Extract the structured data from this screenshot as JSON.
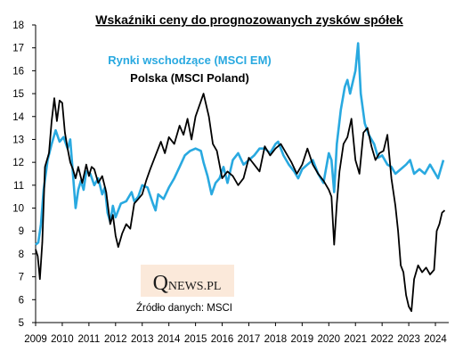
{
  "chart_data": {
    "type": "line",
    "title": "Wskaźniki  ceny do prognozowanych  zysków spółek",
    "xlabel": "",
    "ylabel": "",
    "ylim": [
      5,
      18
    ],
    "xlim": [
      2009.0,
      2024.5
    ],
    "y_ticks": [
      "5",
      "6",
      "7",
      "8",
      "9",
      "10",
      "11",
      "12",
      "13",
      "14",
      "15",
      "16",
      "17",
      "18"
    ],
    "x_ticks": [
      "2009",
      "2010",
      "2011",
      "2012",
      "2013",
      "2014",
      "2015",
      "2016",
      "2017",
      "2018",
      "2019",
      "2020",
      "2021",
      "2022",
      "2023",
      "2024"
    ],
    "grid": false,
    "legend_placement": "top-left",
    "source": "Źródło danych: MSCI",
    "logo": {
      "big": "Q",
      "small": "NEWS.PL"
    },
    "series": [
      {
        "name": "Rynki wschodzące (MSCI EM)",
        "color": "#29a9e0",
        "x": [
          2009.0,
          2009.1,
          2009.2,
          2009.3,
          2009.45,
          2009.6,
          2009.75,
          2009.9,
          2010.05,
          2010.2,
          2010.3,
          2010.4,
          2010.5,
          2010.6,
          2010.7,
          2010.8,
          2010.9,
          2011.05,
          2011.2,
          2011.35,
          2011.5,
          2011.6,
          2011.7,
          2011.8,
          2011.9,
          2012.0,
          2012.2,
          2012.4,
          2012.6,
          2012.7,
          2012.85,
          2013.0,
          2013.2,
          2013.4,
          2013.5,
          2013.6,
          2013.8,
          2014.0,
          2014.2,
          2014.4,
          2014.6,
          2014.8,
          2015.0,
          2015.2,
          2015.3,
          2015.45,
          2015.6,
          2015.75,
          2015.9,
          2016.05,
          2016.2,
          2016.4,
          2016.6,
          2016.8,
          2017.0,
          2017.2,
          2017.4,
          2017.6,
          2017.8,
          2018.0,
          2018.1,
          2018.3,
          2018.5,
          2018.7,
          2018.85,
          2019.0,
          2019.2,
          2019.4,
          2019.6,
          2019.8,
          2020.0,
          2020.1,
          2020.2,
          2020.3,
          2020.45,
          2020.6,
          2020.7,
          2020.8,
          2020.9,
          2021.0,
          2021.1,
          2021.2,
          2021.35,
          2021.5,
          2021.7,
          2021.85,
          2022.0,
          2022.2,
          2022.35,
          2022.5,
          2022.7,
          2022.9,
          2023.05,
          2023.2,
          2023.4,
          2023.6,
          2023.8,
          2023.95,
          2024.1,
          2024.2,
          2024.3
        ],
        "values": [
          8.4,
          8.5,
          9.3,
          10.8,
          12.1,
          12.8,
          13.4,
          12.9,
          13.1,
          12.6,
          13.0,
          11.5,
          10.0,
          10.8,
          11.2,
          10.8,
          11.6,
          11.5,
          11.0,
          11.3,
          10.6,
          10.9,
          9.8,
          9.4,
          10.1,
          9.6,
          10.2,
          10.3,
          10.7,
          10.3,
          10.5,
          11.0,
          10.9,
          10.2,
          9.9,
          10.6,
          10.4,
          10.9,
          11.3,
          11.8,
          12.3,
          12.5,
          12.6,
          12.5,
          12.0,
          11.4,
          10.6,
          11.1,
          11.3,
          11.8,
          11.1,
          12.1,
          12.4,
          11.9,
          12.1,
          12.3,
          12.6,
          12.6,
          12.4,
          12.8,
          12.9,
          12.3,
          11.9,
          11.6,
          11.3,
          11.7,
          11.9,
          12.1,
          11.5,
          11.1,
          12.4,
          12.1,
          10.7,
          12.8,
          14.3,
          15.3,
          15.6,
          15.0,
          15.5,
          16.0,
          17.2,
          15.0,
          13.7,
          13.2,
          12.8,
          12.2,
          12.3,
          11.9,
          11.8,
          11.5,
          11.7,
          11.9,
          12.1,
          11.5,
          11.7,
          11.5,
          11.9,
          11.6,
          11.3,
          11.7,
          12.1
        ]
      },
      {
        "name": "Polska (MSCI Poland)",
        "color": "#000000",
        "x": [
          2009.0,
          2009.08,
          2009.16,
          2009.25,
          2009.35,
          2009.5,
          2009.6,
          2009.7,
          2009.8,
          2009.9,
          2010.0,
          2010.1,
          2010.2,
          2010.3,
          2010.4,
          2010.5,
          2010.6,
          2010.75,
          2010.9,
          2011.0,
          2011.1,
          2011.2,
          2011.35,
          2011.5,
          2011.65,
          2011.8,
          2011.9,
          2012.0,
          2012.1,
          2012.25,
          2012.4,
          2012.55,
          2012.7,
          2012.85,
          2013.0,
          2013.15,
          2013.3,
          2013.5,
          2013.7,
          2013.85,
          2014.0,
          2014.2,
          2014.4,
          2014.55,
          2014.7,
          2014.85,
          2015.0,
          2015.15,
          2015.3,
          2015.5,
          2015.65,
          2015.8,
          2016.0,
          2016.2,
          2016.4,
          2016.6,
          2016.8,
          2017.0,
          2017.2,
          2017.4,
          2017.6,
          2017.8,
          2018.0,
          2018.2,
          2018.4,
          2018.6,
          2018.8,
          2019.0,
          2019.2,
          2019.4,
          2019.6,
          2019.8,
          2020.0,
          2020.1,
          2020.2,
          2020.3,
          2020.4,
          2020.55,
          2020.7,
          2020.85,
          2021.0,
          2021.15,
          2021.3,
          2021.45,
          2021.6,
          2021.75,
          2021.9,
          2022.05,
          2022.2,
          2022.35,
          2022.5,
          2022.6,
          2022.7,
          2022.8,
          2022.9,
          2023.0,
          2023.1,
          2023.2,
          2023.35,
          2023.5,
          2023.65,
          2023.8,
          2023.95,
          2024.05,
          2024.15,
          2024.25,
          2024.35
        ],
        "values": [
          8.2,
          7.9,
          6.9,
          8.5,
          11.8,
          12.4,
          13.8,
          14.8,
          13.8,
          14.7,
          14.6,
          13.3,
          12.6,
          12.0,
          11.7,
          11.3,
          11.8,
          11.1,
          11.9,
          11.4,
          11.8,
          11.7,
          11.1,
          11.4,
          10.7,
          9.3,
          9.7,
          8.8,
          8.3,
          8.9,
          9.3,
          9.1,
          10.2,
          10.4,
          10.6,
          11.2,
          11.7,
          12.3,
          12.9,
          12.4,
          13.1,
          12.8,
          13.6,
          13.2,
          13.9,
          13.0,
          14.0,
          14.5,
          15.0,
          14.0,
          12.8,
          12.5,
          11.3,
          11.6,
          11.4,
          11.0,
          11.3,
          12.2,
          11.9,
          11.6,
          12.7,
          12.3,
          12.6,
          12.8,
          12.4,
          12.0,
          11.5,
          11.9,
          12.6,
          11.9,
          11.5,
          11.2,
          10.8,
          10.5,
          8.4,
          10.2,
          11.6,
          12.8,
          13.1,
          13.9,
          12.1,
          11.5,
          13.3,
          13.5,
          12.7,
          12.1,
          12.4,
          12.5,
          13.2,
          11.3,
          10.1,
          9.0,
          7.5,
          7.2,
          6.2,
          5.7,
          5.5,
          6.9,
          7.5,
          7.2,
          7.4,
          7.1,
          7.3,
          9.0,
          9.3,
          9.8,
          9.9
        ]
      }
    ]
  }
}
